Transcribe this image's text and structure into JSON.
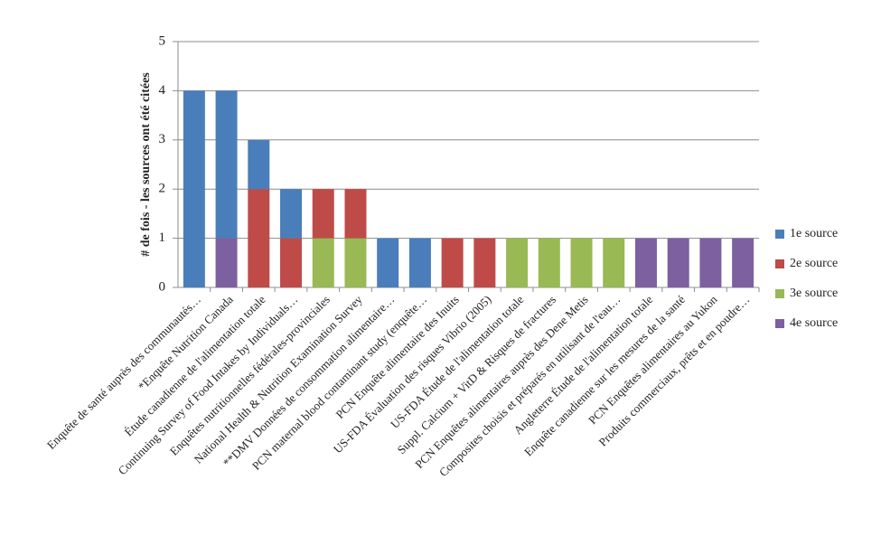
{
  "chart_data": {
    "type": "stacked_bar",
    "y_label": "# de fois - les sources ont été citées",
    "categories": [
      "Enquête de santé auprès des communautés…",
      "*Enquête Nutrition Canada",
      "Étude canadienne de l'alimentation totale",
      "Continuing Survey of Food Intakes by Individuals…",
      "Enquêtes nutritionnelles fédérales-provinciales",
      "National Health & Nutrition Examination Survey",
      "**DMV Données de consommation alimentaire…",
      "PCN maternal blood contaminant study (enquête…",
      "PCN Enquête alimentaire des Inuits",
      "US-FDA Évaluation des risques Vibrio (2005)",
      "US-FDA Étude de l'alimentation totale",
      "Suppl. Calcium + VitD & Risques de fractures",
      "PCN Enquêtes alimentaires auprès des Dene Metis",
      "Composites choisis et préparés en utilisant de l'eau…",
      "Angleterre Étude de l'alimentation totale",
      "Enquête canadienne sur les mesures de la santé",
      "PCN Enquêtes alimentaires au Yukon",
      "Produits commerciaux, prêts et en poudre…"
    ],
    "series": [
      {
        "name": "1e source",
        "color": "#4a7ebb",
        "values": [
          4,
          3,
          1,
          1,
          0,
          0,
          1,
          1,
          0,
          0,
          0,
          0,
          0,
          0,
          0,
          0,
          0,
          0
        ]
      },
      {
        "name": "2e source",
        "color": "#be4b48",
        "values": [
          0,
          0,
          2,
          1,
          1,
          1,
          0,
          0,
          1,
          1,
          0,
          0,
          0,
          0,
          0,
          0,
          0,
          0
        ]
      },
      {
        "name": "3e source",
        "color": "#98b954",
        "values": [
          0,
          0,
          0,
          0,
          1,
          1,
          0,
          0,
          0,
          0,
          1,
          1,
          1,
          1,
          0,
          0,
          0,
          0
        ]
      },
      {
        "name": "4e source",
        "color": "#7d60a0",
        "values": [
          0,
          1,
          0,
          0,
          0,
          0,
          0,
          0,
          0,
          0,
          0,
          0,
          0,
          0,
          1,
          1,
          1,
          1
        ]
      }
    ],
    "stack_order": "last-series-bottom",
    "ylim": [
      0,
      5
    ],
    "yticks": [
      0,
      1,
      2,
      3,
      4,
      5
    ],
    "grid": true,
    "legend": "right"
  }
}
